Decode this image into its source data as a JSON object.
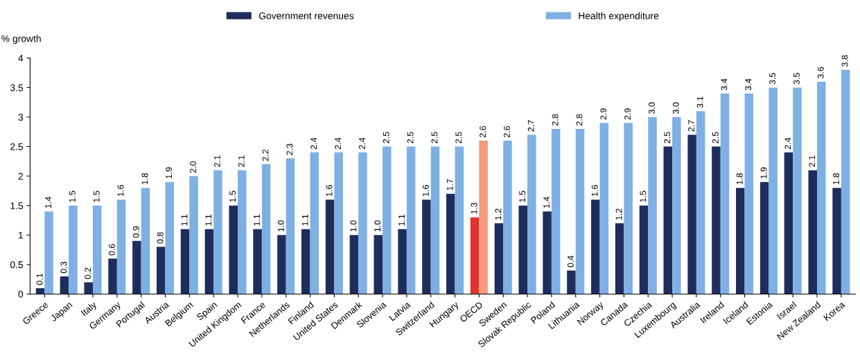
{
  "chart_data": {
    "type": "bar",
    "ylabel": "% growth",
    "categories": [
      "Greece",
      "Japan",
      "Italy",
      "Germany",
      "Portugal",
      "Austria",
      "Belgium",
      "Spain",
      "United Kingdom",
      "France",
      "Netherlands",
      "Finland",
      "United States",
      "Denmark",
      "Slovenia",
      "Latvia",
      "Switzerland",
      "Hungary",
      "OECD",
      "Sweden",
      "Slovak Republic",
      "Poland",
      "Lithuania",
      "Norway",
      "Canada",
      "Czechia",
      "Luxembourg",
      "Australia",
      "Ireland",
      "Iceland",
      "Estonia",
      "Israel",
      "New Zealand",
      "Korea"
    ],
    "series": [
      {
        "name": "Government revenues",
        "color": "#1f2d5c",
        "colors": [
          "#1f2d5c",
          "#1f2d5c",
          "#1f2d5c",
          "#1f2d5c",
          "#1f2d5c",
          "#1f2d5c",
          "#1f2d5c",
          "#1f2d5c",
          "#1f2d5c",
          "#1f2d5c",
          "#1f2d5c",
          "#1f2d5c",
          "#1f2d5c",
          "#1f2d5c",
          "#1f2d5c",
          "#1f2d5c",
          "#1f2d5c",
          "#1f2d5c",
          "#e3312b",
          "#1f2d5c",
          "#1f2d5c",
          "#1f2d5c",
          "#1f2d5c",
          "#1f2d5c",
          "#1f2d5c",
          "#1f2d5c",
          "#1f2d5c",
          "#1f2d5c",
          "#1f2d5c",
          "#1f2d5c",
          "#1f2d5c",
          "#1f2d5c",
          "#1f2d5c",
          "#1f2d5c"
        ],
        "values": [
          0.1,
          0.3,
          0.2,
          0.6,
          0.9,
          0.8,
          1.1,
          1.1,
          1.5,
          1.1,
          1.0,
          1.1,
          1.6,
          1.0,
          1.0,
          1.1,
          1.6,
          1.7,
          1.3,
          1.2,
          1.5,
          1.4,
          0.4,
          1.6,
          1.2,
          1.5,
          2.5,
          2.7,
          2.5,
          1.8,
          1.9,
          2.4,
          2.1,
          1.8
        ],
        "value_labels": [
          "0.1",
          "0.3",
          "0.2",
          "0.6",
          "0.9",
          "0.8",
          "1.1",
          "1.1",
          "1.5",
          "1.1",
          "1.0",
          "1.1",
          "1.6",
          "1.0",
          "1.0",
          "1.1",
          "1.6",
          "1.7",
          "1.3",
          "1.2",
          "1.5",
          "1.4",
          "0.4",
          "1.6",
          "1.2",
          "1.5",
          "2.5",
          "2.7",
          "2.5",
          "1.8",
          "1.9",
          "2.4",
          "2.1",
          "1.8"
        ]
      },
      {
        "name": "Health expenditure",
        "color": "#7fb0e3",
        "colors": [
          "#7fb0e3",
          "#7fb0e3",
          "#7fb0e3",
          "#7fb0e3",
          "#7fb0e3",
          "#7fb0e3",
          "#7fb0e3",
          "#7fb0e3",
          "#7fb0e3",
          "#7fb0e3",
          "#7fb0e3",
          "#7fb0e3",
          "#7fb0e3",
          "#7fb0e3",
          "#7fb0e3",
          "#7fb0e3",
          "#7fb0e3",
          "#7fb0e3",
          "#f79a7e",
          "#7fb0e3",
          "#7fb0e3",
          "#7fb0e3",
          "#7fb0e3",
          "#7fb0e3",
          "#7fb0e3",
          "#7fb0e3",
          "#7fb0e3",
          "#7fb0e3",
          "#7fb0e3",
          "#7fb0e3",
          "#7fb0e3",
          "#7fb0e3",
          "#7fb0e3",
          "#7fb0e3"
        ],
        "values": [
          1.4,
          1.5,
          1.5,
          1.6,
          1.8,
          1.9,
          2.0,
          2.1,
          2.1,
          2.2,
          2.3,
          2.4,
          2.4,
          2.4,
          2.5,
          2.5,
          2.5,
          2.5,
          2.6,
          2.6,
          2.7,
          2.8,
          2.8,
          2.9,
          2.9,
          3.0,
          3.0,
          3.1,
          3.4,
          3.4,
          3.5,
          3.5,
          3.6,
          3.8
        ],
        "value_labels": [
          "1.4",
          "1.5",
          "1.5",
          "1.6",
          "1.8",
          "1.9",
          "2.0",
          "2.1",
          "2.1",
          "2.2",
          "2.3",
          "2.4",
          "2.4",
          "2.4",
          "2.5",
          "2.5",
          "2.5",
          "2.5",
          "2.6",
          "2.6",
          "2.7",
          "2.8",
          "2.8",
          "2.9",
          "2.9",
          "3.0",
          "3.0",
          "3.1",
          "3.4",
          "3.4",
          "3.5",
          "3.5",
          "3.6",
          "3.8"
        ]
      }
    ],
    "ylim": [
      0,
      4
    ],
    "yticks": [
      0,
      0.5,
      1,
      1.5,
      2,
      2.5,
      3,
      3.5,
      4
    ],
    "grid": false,
    "legend": "top"
  }
}
